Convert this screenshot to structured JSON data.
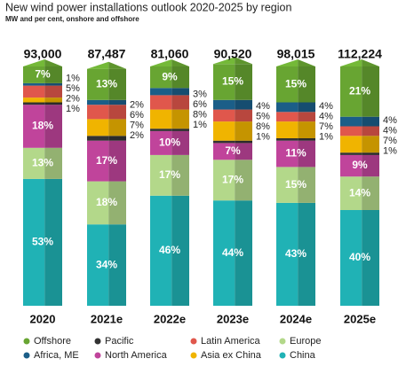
{
  "chart_data": {
    "type": "stacked-bar",
    "title": "New wind power installations outlook 2020-2025 by region",
    "subtitle": "MW and per cent, onshore and offshore",
    "categories": [
      "2020",
      "2021e",
      "2022e",
      "2023e",
      "2024e",
      "2025e"
    ],
    "totals": [
      {
        "value": 93000,
        "label": "93,000"
      },
      {
        "value": 87487,
        "label": "87,487"
      },
      {
        "value": 81060,
        "label": "81,060"
      },
      {
        "value": 90520,
        "label": "90,520"
      },
      {
        "value": 98015,
        "label": "98,015"
      },
      {
        "value": 112224,
        "label": "112,224"
      }
    ],
    "ylim": [
      0,
      100
    ],
    "series": [
      {
        "name": "China",
        "color": "#20b2b5",
        "values": [
          53,
          34,
          46,
          44,
          43,
          40
        ],
        "value_labels": [
          "53%",
          "34%",
          "46%",
          "44%",
          "43%",
          "40%"
        ]
      },
      {
        "name": "Europe",
        "color": "#b3d88a",
        "values": [
          13,
          18,
          17,
          17,
          15,
          14
        ],
        "value_labels": [
          "13%",
          "18%",
          "17%",
          "17%",
          "15%",
          "14%"
        ]
      },
      {
        "name": "North America",
        "color": "#c0449b",
        "values": [
          18,
          17,
          10,
          7,
          11,
          9
        ],
        "value_labels": [
          "18%",
          "17%",
          "10%",
          "7%",
          "11%",
          "9%"
        ]
      },
      {
        "name": "Pacific",
        "color": "#333333",
        "values": [
          1,
          2,
          1,
          1,
          1,
          1
        ],
        "value_labels": [
          "1%",
          "2%",
          "1%",
          "1%",
          "1%",
          "1%"
        ]
      },
      {
        "name": "Asia ex China",
        "color": "#f0b400",
        "values": [
          2,
          7,
          8,
          8,
          7,
          7
        ],
        "value_labels": [
          "2%",
          "7%",
          "8%",
          "8%",
          "7%",
          "7%"
        ]
      },
      {
        "name": "Latin America",
        "color": "#e0574c",
        "values": [
          5,
          6,
          6,
          5,
          4,
          4
        ],
        "value_labels": [
          "5%",
          "6%",
          "6%",
          "5%",
          "4%",
          "4%"
        ]
      },
      {
        "name": "Africa, ME",
        "color": "#1b5e88",
        "values": [
          1,
          2,
          3,
          4,
          4,
          4
        ],
        "value_labels": [
          "1%",
          "2%",
          "3%",
          "4%",
          "4%",
          "4%"
        ]
      },
      {
        "name": "Offshore",
        "color": "#68a532",
        "values": [
          7,
          13,
          9,
          15,
          15,
          21
        ],
        "value_labels": [
          "7%",
          "13%",
          "9%",
          "15%",
          "15%",
          "21%"
        ]
      }
    ]
  }
}
